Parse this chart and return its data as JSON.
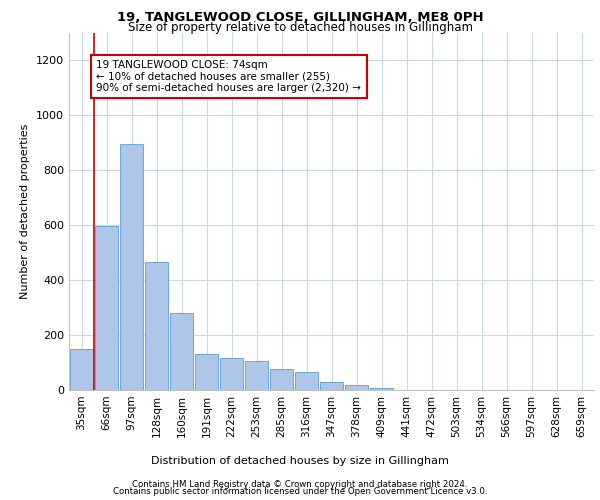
{
  "title1": "19, TANGLEWOOD CLOSE, GILLINGHAM, ME8 0PH",
  "title2": "Size of property relative to detached houses in Gillingham",
  "xlabel": "Distribution of detached houses by size in Gillingham",
  "ylabel": "Number of detached properties",
  "categories": [
    "35sqm",
    "66sqm",
    "97sqm",
    "128sqm",
    "160sqm",
    "191sqm",
    "222sqm",
    "253sqm",
    "285sqm",
    "316sqm",
    "347sqm",
    "378sqm",
    "409sqm",
    "441sqm",
    "472sqm",
    "503sqm",
    "534sqm",
    "566sqm",
    "597sqm",
    "628sqm",
    "659sqm"
  ],
  "values": [
    148,
    595,
    893,
    467,
    280,
    130,
    115,
    105,
    75,
    65,
    30,
    20,
    8,
    0,
    0,
    0,
    0,
    0,
    0,
    0,
    0
  ],
  "bar_color": "#aec6e8",
  "bar_edgecolor": "#5a9fd4",
  "annotation_box_text": "19 TANGLEWOOD CLOSE: 74sqm\n← 10% of detached houses are smaller (255)\n90% of semi-detached houses are larger (2,320) →",
  "vline_color": "#cc0000",
  "vline_x": 0.5,
  "ylim": [
    0,
    1300
  ],
  "yticks": [
    0,
    200,
    400,
    600,
    800,
    1000,
    1200
  ],
  "footer1": "Contains HM Land Registry data © Crown copyright and database right 2024.",
  "footer2": "Contains public sector information licensed under the Open Government Licence v3.0.",
  "background_color": "#ffffff",
  "grid_color": "#c8d8e8"
}
